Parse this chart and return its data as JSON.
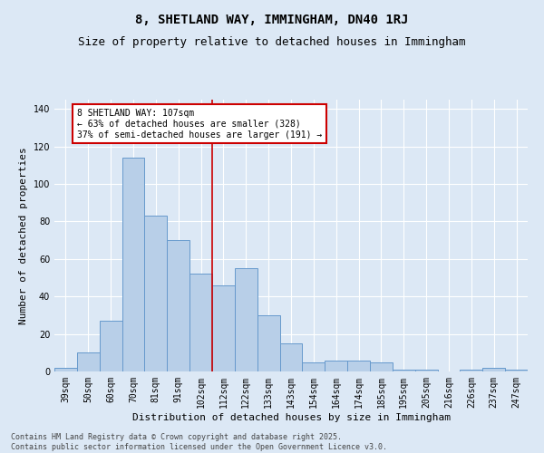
{
  "title": "8, SHETLAND WAY, IMMINGHAM, DN40 1RJ",
  "subtitle": "Size of property relative to detached houses in Immingham",
  "xlabel": "Distribution of detached houses by size in Immingham",
  "ylabel": "Number of detached properties",
  "categories": [
    "39sqm",
    "50sqm",
    "60sqm",
    "70sqm",
    "81sqm",
    "91sqm",
    "102sqm",
    "112sqm",
    "122sqm",
    "133sqm",
    "143sqm",
    "154sqm",
    "164sqm",
    "174sqm",
    "185sqm",
    "195sqm",
    "205sqm",
    "216sqm",
    "226sqm",
    "237sqm",
    "247sqm"
  ],
  "values": [
    2,
    10,
    27,
    114,
    83,
    70,
    52,
    46,
    55,
    30,
    15,
    5,
    6,
    6,
    5,
    1,
    1,
    0,
    1,
    2,
    1
  ],
  "bar_color": "#b8cfe8",
  "bar_edge_color": "#6699cc",
  "background_color": "#dce8f5",
  "grid_color": "#ffffff",
  "vline_color": "#cc0000",
  "vline_pos": 6.5,
  "ylim": [
    0,
    145
  ],
  "yticks": [
    0,
    20,
    40,
    60,
    80,
    100,
    120,
    140
  ],
  "annotation_text": "8 SHETLAND WAY: 107sqm\n← 63% of detached houses are smaller (328)\n37% of semi-detached houses are larger (191) →",
  "annotation_box_color": "#ffffff",
  "annotation_box_edge": "#cc0000",
  "footer": "Contains HM Land Registry data © Crown copyright and database right 2025.\nContains public sector information licensed under the Open Government Licence v3.0.",
  "title_fontsize": 10,
  "subtitle_fontsize": 9,
  "axis_label_fontsize": 8,
  "tick_fontsize": 7,
  "ann_fontsize": 7,
  "footer_fontsize": 6
}
